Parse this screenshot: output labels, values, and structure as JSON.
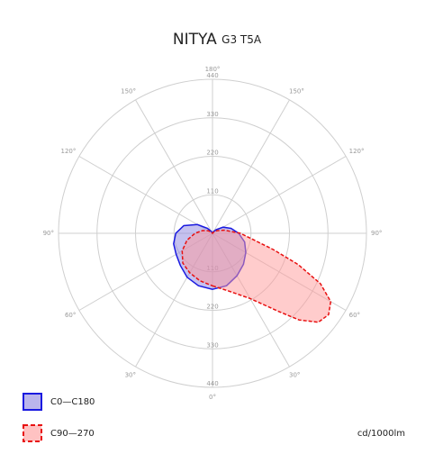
{
  "chart_data": {
    "type": "polar",
    "title": "NITYA",
    "subtitle": "G3 T5A",
    "unit_label": "cd/1000lm",
    "rlim": [
      0,
      440
    ],
    "rticks": [
      110,
      220,
      330,
      440
    ],
    "thetaticks": [
      {
        "value": 0,
        "label": "0°"
      },
      {
        "value": 30,
        "label": "30°"
      },
      {
        "value": 60,
        "label": "60°"
      },
      {
        "value": 90,
        "label": "90°"
      },
      {
        "value": 120,
        "label": "120°"
      },
      {
        "value": 150,
        "label": "150°"
      },
      {
        "value": 180,
        "label": "180°"
      }
    ],
    "series": [
      {
        "name": "C0—C180",
        "color": "#1a1ae0",
        "fill": "#8c84e0",
        "dashed": false,
        "angles": [
          0,
          15,
          30,
          45,
          60,
          75,
          90,
          105,
          120,
          135,
          150,
          165,
          180,
          195,
          210,
          225,
          240,
          255,
          270,
          285,
          300,
          315,
          330,
          345
        ],
        "values": [
          160,
          155,
          140,
          125,
          110,
          95,
          75,
          55,
          35,
          15,
          5,
          0,
          0,
          0,
          5,
          20,
          50,
          85,
          105,
          115,
          120,
          130,
          145,
          155
        ]
      },
      {
        "name": "C90—270",
        "color": "#e81010",
        "fill": "#ff9a9a",
        "dashed": true,
        "angles": [
          0,
          15,
          30,
          40,
          45,
          50,
          55,
          60,
          65,
          70,
          75,
          90,
          105,
          120,
          135,
          150,
          165,
          180,
          195,
          210,
          225,
          240,
          255,
          270,
          285,
          300,
          315,
          330,
          345
        ],
        "values": [
          150,
          170,
          215,
          290,
          350,
          395,
          405,
          390,
          340,
          260,
          180,
          80,
          35,
          15,
          5,
          0,
          0,
          0,
          0,
          0,
          5,
          15,
          30,
          50,
          75,
          100,
          120,
          130,
          140
        ]
      }
    ]
  }
}
